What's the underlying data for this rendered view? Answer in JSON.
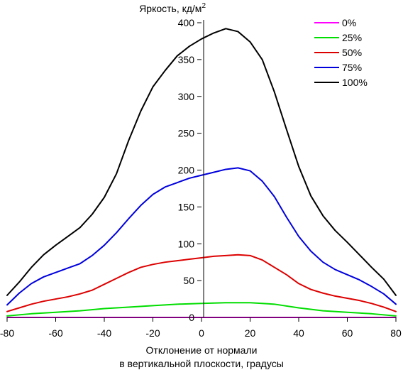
{
  "chart_data": {
    "type": "line",
    "ylabel": "Яркость, кд/м",
    "ylabel_sup": "2",
    "xlabel_line1": "Отклонение от нормали",
    "xlabel_line2": "в вертикальной плоскости, градусы",
    "xlim": [
      -80,
      80
    ],
    "ylim": [
      0,
      400
    ],
    "xticks": [
      -80,
      -60,
      -40,
      -20,
      0,
      20,
      40,
      60,
      80
    ],
    "yticks": [
      0,
      50,
      100,
      150,
      200,
      250,
      300,
      350,
      400
    ],
    "grid": false,
    "legend_position": "top-right",
    "series": [
      {
        "name": "0%",
        "color": "#ff00ff",
        "x": [
          -80,
          -60,
          -40,
          -20,
          0,
          20,
          40,
          60,
          80
        ],
        "y": [
          0,
          0,
          0,
          0,
          0,
          0,
          0,
          0,
          0
        ]
      },
      {
        "name": "25%",
        "color": "#00dd00",
        "x": [
          -80,
          -70,
          -60,
          -50,
          -40,
          -30,
          -20,
          -10,
          0,
          10,
          20,
          30,
          40,
          50,
          60,
          70,
          80
        ],
        "y": [
          2,
          5,
          7,
          9,
          12,
          14,
          16,
          18,
          19,
          20,
          20,
          18,
          13,
          9,
          7,
          5,
          2
        ]
      },
      {
        "name": "50%",
        "color": "#dd0000",
        "x": [
          -80,
          -75,
          -70,
          -65,
          -60,
          -55,
          -50,
          -45,
          -40,
          -35,
          -30,
          -25,
          -20,
          -15,
          -10,
          -5,
          0,
          5,
          10,
          15,
          20,
          25,
          30,
          35,
          40,
          45,
          50,
          55,
          60,
          65,
          70,
          75,
          80
        ],
        "y": [
          8,
          13,
          18,
          22,
          25,
          28,
          32,
          37,
          45,
          53,
          61,
          68,
          72,
          75,
          77,
          79,
          81,
          83,
          84,
          85,
          84,
          78,
          68,
          58,
          46,
          38,
          33,
          29,
          26,
          23,
          19,
          14,
          8
        ]
      },
      {
        "name": "75%",
        "color": "#0000dd",
        "x": [
          -80,
          -75,
          -70,
          -65,
          -60,
          -55,
          -50,
          -45,
          -40,
          -35,
          -30,
          -25,
          -20,
          -15,
          -10,
          -5,
          0,
          5,
          10,
          15,
          20,
          25,
          30,
          35,
          40,
          45,
          50,
          55,
          60,
          65,
          70,
          75,
          80
        ],
        "y": [
          17,
          33,
          46,
          55,
          61,
          67,
          73,
          84,
          98,
          115,
          134,
          152,
          167,
          177,
          183,
          189,
          193,
          197,
          201,
          203,
          199,
          185,
          164,
          136,
          110,
          90,
          75,
          65,
          58,
          51,
          42,
          32,
          18
        ]
      },
      {
        "name": "100%",
        "color": "#000000",
        "x": [
          -80,
          -75,
          -70,
          -65,
          -60,
          -55,
          -50,
          -45,
          -40,
          -35,
          -30,
          -25,
          -20,
          -15,
          -10,
          -5,
          0,
          5,
          10,
          15,
          20,
          25,
          30,
          35,
          40,
          45,
          50,
          55,
          60,
          65,
          70,
          75,
          80
        ],
        "y": [
          30,
          48,
          68,
          85,
          98,
          110,
          122,
          140,
          163,
          195,
          240,
          280,
          313,
          335,
          355,
          368,
          378,
          386,
          392,
          388,
          374,
          350,
          306,
          255,
          205,
          165,
          138,
          118,
          102,
          85,
          68,
          52,
          30
        ]
      }
    ]
  }
}
